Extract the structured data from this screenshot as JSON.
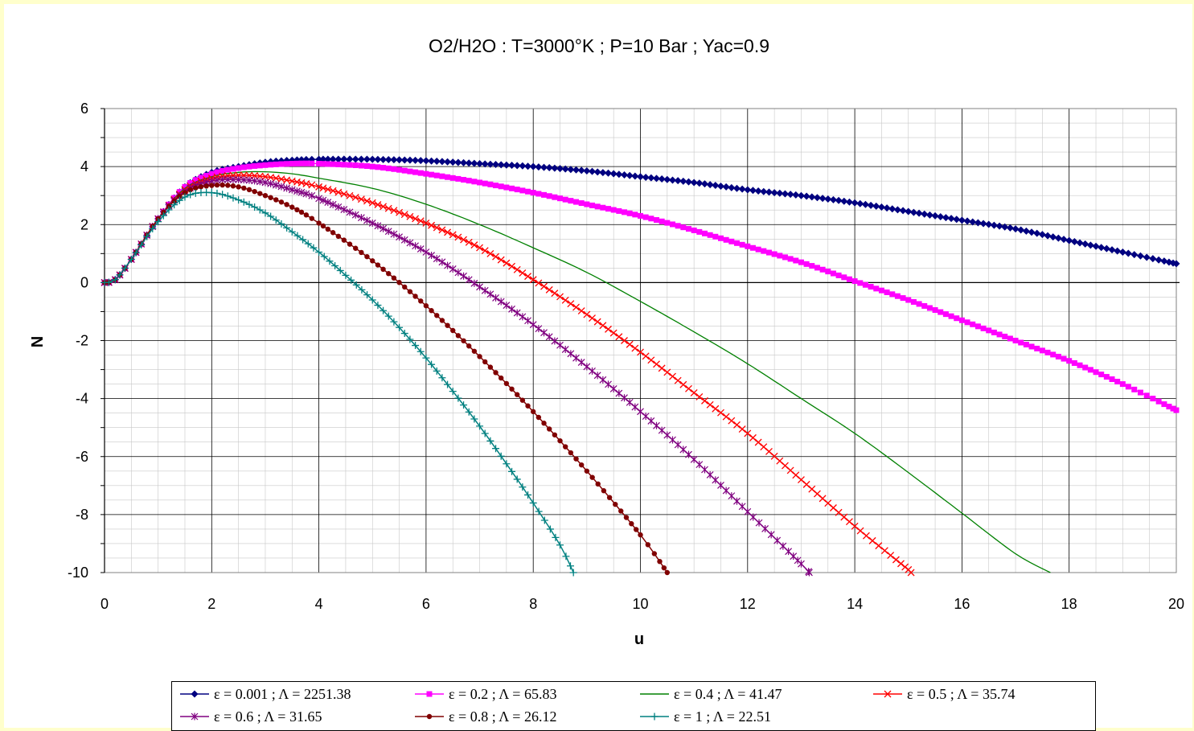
{
  "chart_data": {
    "type": "line",
    "title": "O2/H2O : T=3000°K ; P=10 Bar ; Yac=0.9",
    "xlabel": "u",
    "ylabel": "N",
    "xlim": [
      0,
      20
    ],
    "ylim": [
      -10,
      6
    ],
    "x_ticks": [
      "0",
      "2",
      "4",
      "6",
      "8",
      "10",
      "12",
      "14",
      "16",
      "18",
      "20"
    ],
    "y_ticks": [
      "6",
      "4",
      "2",
      "0",
      "-2",
      "-4",
      "-6",
      "-8",
      "-10"
    ],
    "grid": "major and minor",
    "legend_position": "bottom",
    "series": [
      {
        "name": "ε = 0.001 ; Λ = 2251.38",
        "color": "#000080",
        "marker": "diamond",
        "x": [
          0,
          0.2,
          0.5,
          1,
          1.5,
          2,
          2.5,
          3,
          3.5,
          4,
          5,
          6,
          7,
          8,
          9,
          10,
          11,
          12,
          13,
          14,
          15,
          16,
          17,
          18,
          19,
          20
        ],
        "y": [
          0,
          0.1,
          0.8,
          2.2,
          3.3,
          3.8,
          4.0,
          4.15,
          4.22,
          4.25,
          4.25,
          4.2,
          4.1,
          4.0,
          3.85,
          3.65,
          3.45,
          3.2,
          3.0,
          2.75,
          2.45,
          2.15,
          1.85,
          1.45,
          1.05,
          0.65
        ]
      },
      {
        "name": "ε = 0.2 ; Λ = 65.83",
        "color": "#ff00ff",
        "marker": "square",
        "x": [
          0,
          0.2,
          0.5,
          1,
          1.5,
          2,
          2.5,
          3,
          3.5,
          4,
          5,
          6,
          7,
          8,
          9,
          10,
          11,
          12,
          13,
          14,
          15,
          16,
          17,
          18,
          19,
          20
        ],
        "y": [
          0,
          0.1,
          0.8,
          2.2,
          3.3,
          3.75,
          3.95,
          4.05,
          4.1,
          4.1,
          4.0,
          3.75,
          3.45,
          3.1,
          2.7,
          2.3,
          1.8,
          1.25,
          0.7,
          0.05,
          -0.6,
          -1.3,
          -2.0,
          -2.7,
          -3.5,
          -4.4
        ]
      },
      {
        "name": "ε = 0.4 ; Λ = 41.47",
        "color": "#008000",
        "marker": "none",
        "x": [
          0,
          0.2,
          0.5,
          1,
          1.5,
          2,
          2.5,
          3,
          3.5,
          4,
          5,
          6,
          7,
          8,
          9,
          10,
          11,
          12,
          13,
          14,
          15,
          16,
          17,
          17.65
        ],
        "y": [
          0,
          0.1,
          0.8,
          2.2,
          3.25,
          3.65,
          3.8,
          3.82,
          3.75,
          3.6,
          3.25,
          2.7,
          2.0,
          1.2,
          0.35,
          -0.65,
          -1.7,
          -2.8,
          -4.0,
          -5.2,
          -6.55,
          -7.95,
          -9.35,
          -10
        ]
      },
      {
        "name": "ε = 0.5 ; Λ = 35.74",
        "color": "#ff0000",
        "marker": "x",
        "x": [
          0,
          0.2,
          0.5,
          1,
          1.5,
          2,
          2.5,
          3,
          3.5,
          4,
          5,
          6,
          7,
          8,
          9,
          10,
          11,
          12,
          13,
          14,
          15,
          15.05
        ],
        "y": [
          0,
          0.1,
          0.8,
          2.2,
          3.2,
          3.6,
          3.7,
          3.65,
          3.5,
          3.3,
          2.75,
          2.05,
          1.2,
          0.1,
          -1.1,
          -2.4,
          -3.8,
          -5.2,
          -6.8,
          -8.4,
          -9.9,
          -10
        ]
      },
      {
        "name": "ε = 0.6 ; Λ = 31.65",
        "color": "#800080",
        "marker": "asterisk",
        "x": [
          0,
          0.2,
          0.5,
          1,
          1.5,
          2,
          2.5,
          3,
          3.5,
          4,
          5,
          6,
          7,
          8,
          9,
          10,
          11,
          12,
          13,
          13.15
        ],
        "y": [
          0,
          0.1,
          0.8,
          2.2,
          3.15,
          3.5,
          3.55,
          3.45,
          3.2,
          2.9,
          2.05,
          1.05,
          -0.15,
          -1.45,
          -2.9,
          -4.45,
          -6.1,
          -7.9,
          -9.7,
          -10
        ]
      },
      {
        "name": "ε = 0.8 ; Λ = 26.12",
        "color": "#800000",
        "marker": "circle",
        "x": [
          0,
          0.2,
          0.5,
          1,
          1.5,
          2,
          2.5,
          3,
          3.5,
          4,
          5,
          6,
          7,
          8,
          9,
          10,
          10.5
        ],
        "y": [
          0,
          0.1,
          0.8,
          2.2,
          3.1,
          3.35,
          3.3,
          3.0,
          2.6,
          2.05,
          0.75,
          -0.8,
          -2.55,
          -4.45,
          -6.5,
          -8.7,
          -10
        ]
      },
      {
        "name": "ε = 1 ; Λ = 22.51",
        "color": "#008080",
        "marker": "plus",
        "x": [
          0,
          0.2,
          0.5,
          1,
          1.5,
          2,
          2.5,
          3,
          3.5,
          4,
          4.5,
          5,
          5.5,
          6,
          6.5,
          7,
          7.5,
          8,
          8.5,
          8.75
        ],
        "y": [
          0,
          0.1,
          0.8,
          2.1,
          2.95,
          3.1,
          2.85,
          2.4,
          1.75,
          1.05,
          0.25,
          -0.6,
          -1.55,
          -2.6,
          -3.75,
          -4.95,
          -6.25,
          -7.6,
          -9.05,
          -10
        ]
      }
    ]
  }
}
